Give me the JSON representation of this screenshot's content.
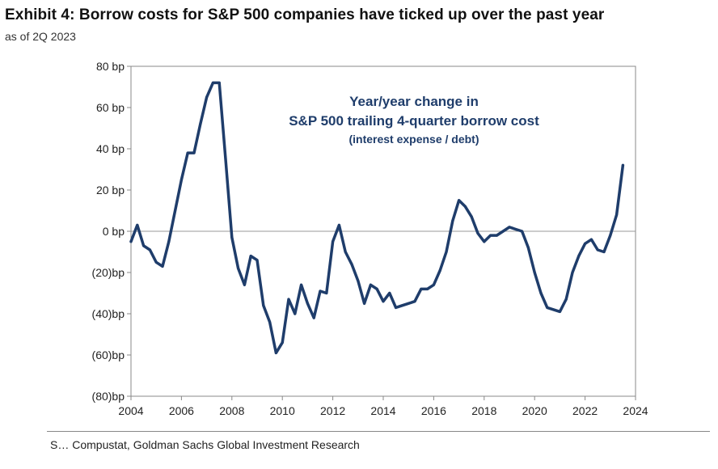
{
  "header": {
    "title": "Exhibit 4: Borrow costs for S&P 500 companies have ticked up over the past year",
    "subtitle": "as of 2Q 2023"
  },
  "footer": {
    "source": "S… Compustat, Goldman Sachs Global Investment Research"
  },
  "colors": {
    "line": "#1f3d6b",
    "axis": "#888888",
    "zero_line": "#999999",
    "annotation": "#1f3d6b"
  },
  "chart_data": {
    "type": "line",
    "title": "Year/year change in",
    "subtitle_lines": [
      "S&P 500 trailing 4-quarter borrow cost",
      "(interest expense / debt)"
    ],
    "xlabel": "",
    "ylabel": "",
    "xlim": [
      2004,
      2024
    ],
    "ylim": [
      -80,
      80
    ],
    "x_ticks": [
      2004,
      2006,
      2008,
      2010,
      2012,
      2014,
      2016,
      2018,
      2020,
      2022,
      2024
    ],
    "x_tick_labels": [
      "2004",
      "2006",
      "2008",
      "2010",
      "2012",
      "2014",
      "2016",
      "2018",
      "2020",
      "2022",
      "2024"
    ],
    "y_ticks": [
      80,
      60,
      40,
      20,
      0,
      -20,
      -40,
      -60,
      -80
    ],
    "y_tick_labels": [
      "80 bp",
      "60 bp",
      "40 bp",
      "20 bp",
      "0 bp",
      "(20)bp",
      "(40)bp",
      "(60)bp",
      "(80)bp"
    ],
    "grid": false,
    "series": [
      {
        "name": "Year/year change in S&P 500 trailing 4-quarter borrow cost",
        "x": [
          2004.0,
          2004.25,
          2004.5,
          2004.75,
          2005.0,
          2005.25,
          2005.5,
          2005.75,
          2006.0,
          2006.25,
          2006.5,
          2006.75,
          2007.0,
          2007.25,
          2007.5,
          2007.75,
          2008.0,
          2008.25,
          2008.5,
          2008.75,
          2009.0,
          2009.25,
          2009.5,
          2009.75,
          2010.0,
          2010.25,
          2010.5,
          2010.75,
          2011.0,
          2011.25,
          2011.5,
          2011.75,
          2012.0,
          2012.25,
          2012.5,
          2012.75,
          2013.0,
          2013.25,
          2013.5,
          2013.75,
          2014.0,
          2014.25,
          2014.5,
          2014.75,
          2015.0,
          2015.25,
          2015.5,
          2015.75,
          2016.0,
          2016.25,
          2016.5,
          2016.75,
          2017.0,
          2017.25,
          2017.5,
          2017.75,
          2018.0,
          2018.25,
          2018.5,
          2018.75,
          2019.0,
          2019.25,
          2019.5,
          2019.75,
          2020.0,
          2020.25,
          2020.5,
          2020.75,
          2021.0,
          2021.25,
          2021.5,
          2021.75,
          2022.0,
          2022.25,
          2022.5,
          2022.75,
          2023.0,
          2023.25,
          2023.5
        ],
        "values": [
          -5,
          3,
          -7,
          -9,
          -15,
          -17,
          -5,
          10,
          25,
          38,
          38,
          52,
          65,
          72,
          72,
          35,
          -3,
          -18,
          -26,
          -12,
          -14,
          -36,
          -44,
          -59,
          -54,
          -33,
          -40,
          -26,
          -35,
          -42,
          -29,
          -30,
          -5,
          3,
          -10,
          -16,
          -24,
          -35,
          -26,
          -28,
          -34,
          -30,
          -37,
          -36,
          -35,
          -34,
          -28,
          -28,
          -26,
          -19,
          -10,
          5,
          15,
          12,
          7,
          -1,
          -5,
          -2,
          -2,
          0,
          2,
          1,
          0,
          -8,
          -20,
          -30,
          -37,
          -38,
          -39,
          -33,
          -20,
          -12,
          -6,
          -4,
          -9,
          -10,
          -2,
          8,
          32
        ]
      }
    ]
  }
}
